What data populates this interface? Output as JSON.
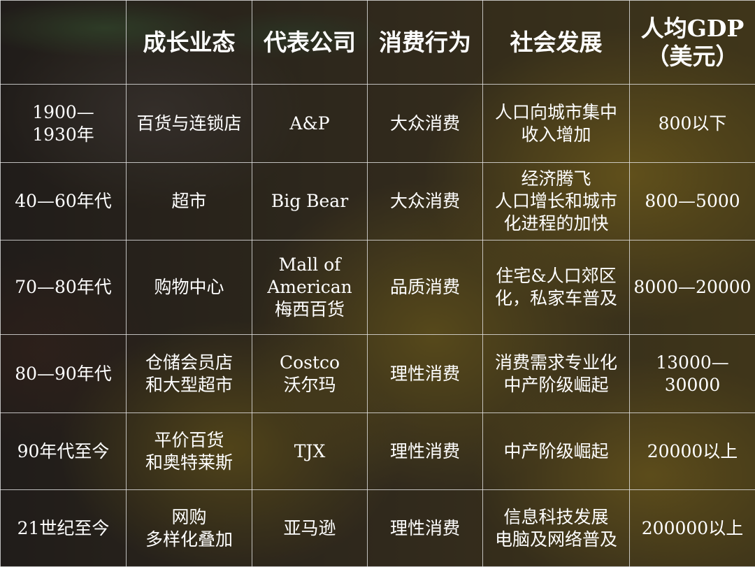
{
  "headers": [
    "",
    "成长业态",
    "代表公司",
    "消费行为",
    "社会发展",
    "人均GDP\n（美元）"
  ],
  "rows": [
    [
      "1900—\n1930年",
      "百货与连锁店",
      "A&P",
      "大众消费",
      "人口向城市集中\n收入增加",
      "800以下"
    ],
    [
      "40—60年代",
      "超市",
      "Big Bear",
      "大众消费",
      "经济腾飞\n人口增长和城市\n化进程的加快",
      "800—5000"
    ],
    [
      "70—80年代",
      "购物中心",
      "Mall of\nAmerican\n梅西百货",
      "品质消费",
      "住宅&人口郊区\n化，私家车普及",
      "8000—20000"
    ],
    [
      "80—90年代",
      "仓储会员店\n和大型超市",
      "Costco\n沃尔玛",
      "理性消费",
      "消费需求专业化\n中产阶级崛起",
      "13000—\n30000"
    ],
    [
      "90年代至今",
      "平价百货\n和奥特莱斯",
      "TJX",
      "理性消费",
      "中产阶级崛起",
      "20000以上"
    ],
    [
      "21世纪至今",
      "网购\n多样化叠加",
      "亚马逊",
      "理性消费",
      "信息科技发展\n电脑及网络普及",
      "200000以上"
    ]
  ]
}
